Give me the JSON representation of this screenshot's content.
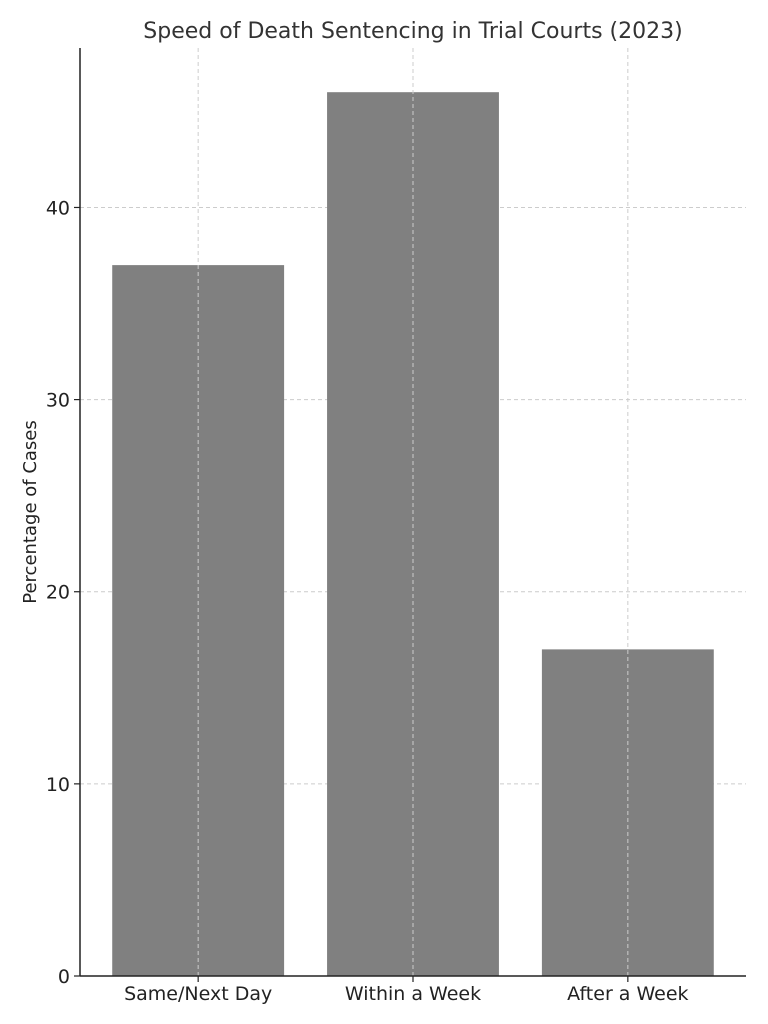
{
  "chart_data": {
    "type": "bar",
    "title": "Speed of Death Sentencing in Trial Courts (2023)",
    "xlabel": "",
    "ylabel": "Percentage of Cases",
    "categories": [
      "Same/Next Day",
      "Within a Week",
      "After a Week"
    ],
    "values": [
      37,
      46,
      17
    ],
    "ylim": [
      0,
      48.3
    ],
    "yticks": [
      0,
      10,
      20,
      30,
      40
    ],
    "grid": true,
    "bar_color": "#808080"
  }
}
